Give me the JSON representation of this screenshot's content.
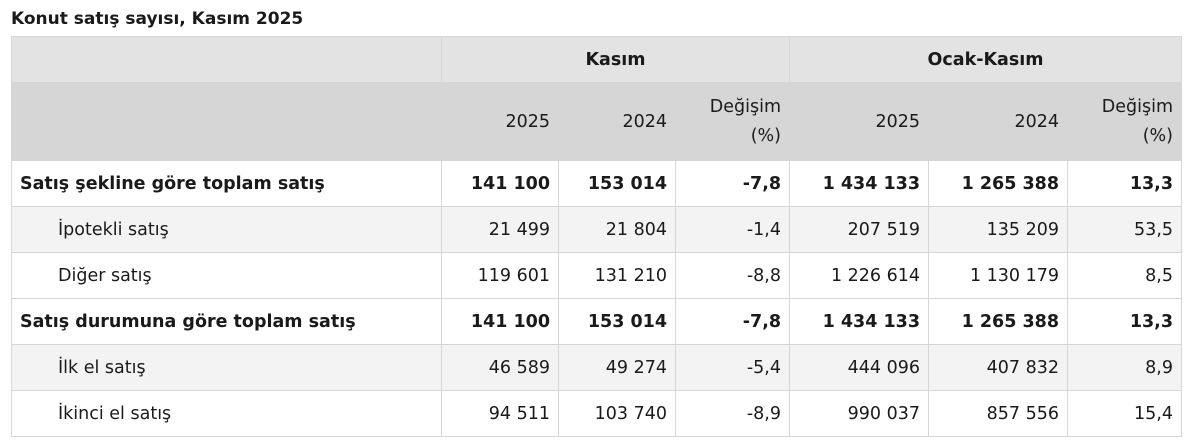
{
  "title": "Konut satış sayısı, Kasım 2025",
  "groups": [
    "Kasım",
    "Ocak-Kasım"
  ],
  "subheaders": [
    "2025",
    "2024",
    "Değişim (%)",
    "2025",
    "2024",
    "Değişim (%)"
  ],
  "rows": [
    {
      "label": "Satış şekline göre toplam satış",
      "bold": true,
      "indent": false,
      "values": [
        "141 100",
        "153 014",
        "-7,8",
        "1 434 133",
        "1 265 388",
        "13,3"
      ]
    },
    {
      "label": "İpotekli satış",
      "bold": false,
      "indent": true,
      "values": [
        "21 499",
        "21 804",
        "-1,4",
        "207 519",
        "135 209",
        "53,5"
      ]
    },
    {
      "label": "Diğer satış",
      "bold": false,
      "indent": true,
      "values": [
        "119 601",
        "131 210",
        "-8,8",
        "1 226 614",
        "1 130 179",
        "8,5"
      ]
    },
    {
      "label": "Satış durumuna göre toplam satış",
      "bold": true,
      "indent": false,
      "values": [
        "141 100",
        "153 014",
        "-7,8",
        "1 434 133",
        "1 265 388",
        "13,3"
      ]
    },
    {
      "label": "İlk el satış",
      "bold": false,
      "indent": true,
      "values": [
        "46 589",
        "49 274",
        "-5,4",
        "444 096",
        "407 832",
        "8,9"
      ]
    },
    {
      "label": "İkinci el satış",
      "bold": false,
      "indent": true,
      "values": [
        "94 511",
        "103 740",
        "-8,9",
        "990 037",
        "857 556",
        "15,4"
      ]
    }
  ]
}
